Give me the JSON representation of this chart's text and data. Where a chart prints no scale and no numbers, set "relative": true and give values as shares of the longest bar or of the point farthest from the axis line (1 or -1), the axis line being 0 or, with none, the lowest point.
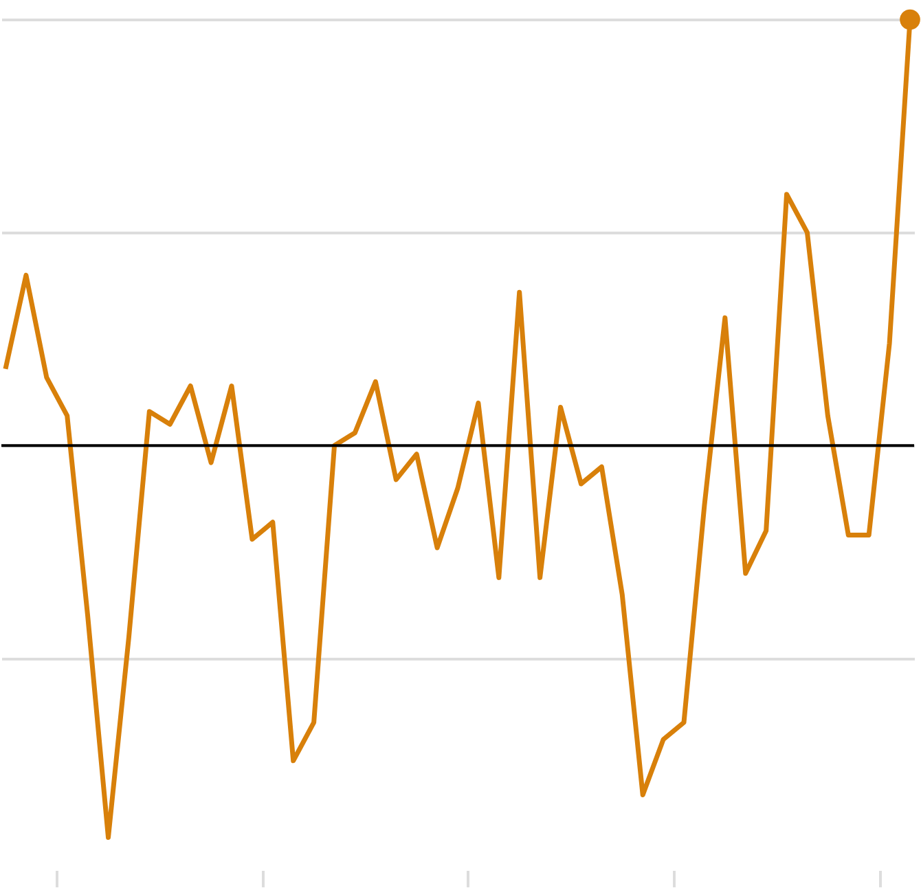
{
  "chart_data": {
    "type": "line",
    "relative": true,
    "grid": "y",
    "categories": [
      null,
      null,
      null,
      null,
      null,
      null,
      null,
      null,
      null,
      null,
      null,
      null,
      null,
      null,
      null,
      null,
      null,
      null,
      null,
      null,
      null,
      null,
      null,
      null,
      null,
      null,
      null,
      null,
      null,
      null,
      null,
      null,
      null,
      null,
      null,
      null,
      null,
      null,
      null,
      null,
      null,
      null,
      null,
      null,
      null
    ],
    "series": [
      {
        "color": "#d8800a",
        "values": [
          0.18,
          0.4,
          0.16,
          0.07,
          -0.4,
          -0.92,
          -0.45,
          0.08,
          0.05,
          0.14,
          -0.04,
          0.14,
          -0.22,
          -0.18,
          -0.74,
          -0.65,
          0,
          0.03,
          0.15,
          -0.08,
          -0.02,
          -0.24,
          -0.1,
          0.1,
          -0.31,
          0.36,
          -0.31,
          0.09,
          -0.09,
          -0.05,
          -0.35,
          -0.82,
          -0.69,
          -0.65,
          -0.14,
          0.3,
          -0.3,
          -0.2,
          0.59,
          0.5,
          0.07,
          -0.21,
          -0.21,
          0.24,
          1
        ]
      }
    ]
  }
}
